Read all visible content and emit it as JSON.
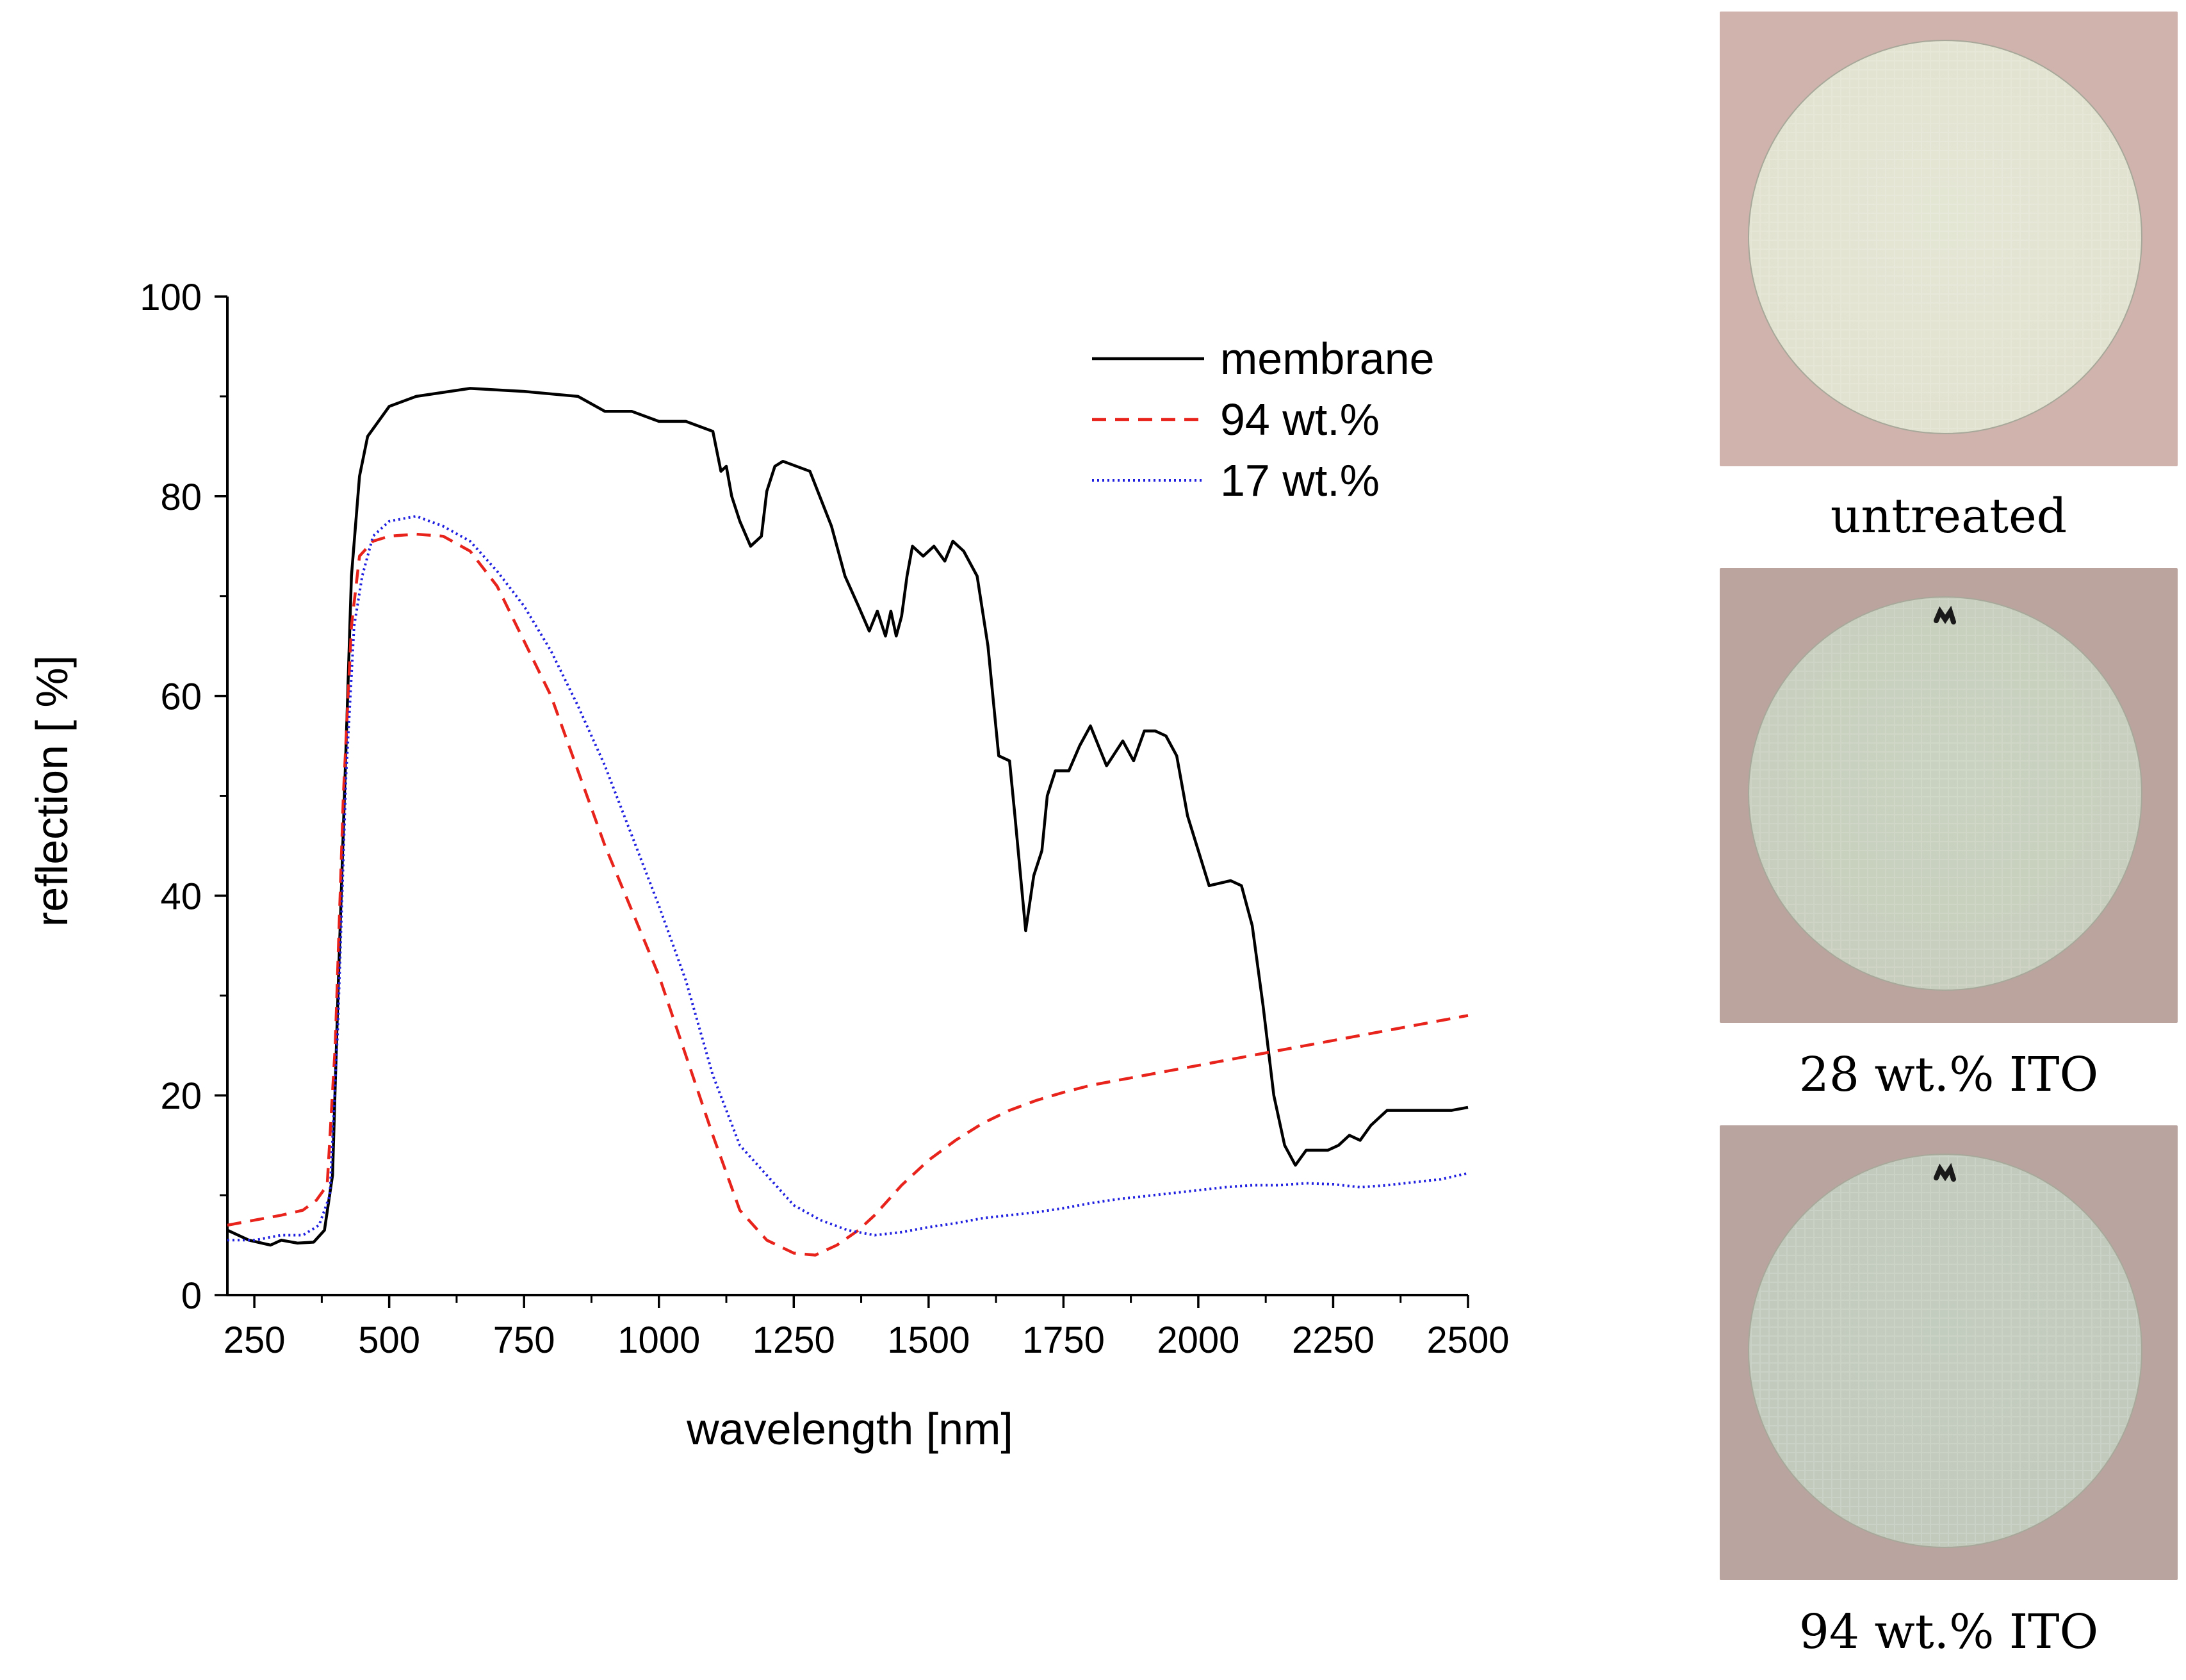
{
  "chart_data": {
    "type": "line",
    "xlabel": "wavelength [nm]",
    "ylabel": "reflection [ %]",
    "xlim": [
      200,
      2500
    ],
    "ylim": [
      0,
      100
    ],
    "xticks": [
      250,
      500,
      750,
      1000,
      1250,
      1500,
      1750,
      2000,
      2250,
      2500
    ],
    "yticks": [
      0,
      20,
      40,
      60,
      80,
      100
    ],
    "legend_position": "top-right",
    "grid": false,
    "series": [
      {
        "name": "membrane",
        "color": "#000000",
        "style": "solid",
        "x": [
          200,
          240,
          280,
          300,
          330,
          360,
          380,
          395,
          405,
          420,
          430,
          445,
          460,
          500,
          550,
          650,
          750,
          850,
          900,
          950,
          1000,
          1050,
          1100,
          1115,
          1125,
          1135,
          1150,
          1170,
          1190,
          1200,
          1215,
          1230,
          1280,
          1320,
          1345,
          1370,
          1390,
          1405,
          1420,
          1430,
          1440,
          1450,
          1460,
          1470,
          1490,
          1510,
          1530,
          1545,
          1565,
          1590,
          1610,
          1630,
          1650,
          1660,
          1680,
          1695,
          1710,
          1720,
          1735,
          1760,
          1780,
          1800,
          1830,
          1860,
          1880,
          1900,
          1920,
          1940,
          1960,
          1980,
          2020,
          2060,
          2080,
          2100,
          2120,
          2140,
          2160,
          2180,
          2200,
          2220,
          2240,
          2260,
          2280,
          2300,
          2320,
          2350,
          2390,
          2420,
          2450,
          2470,
          2500
        ],
        "values": [
          6.5,
          5.5,
          5.0,
          5.5,
          5.2,
          5.3,
          6.5,
          12,
          30,
          55,
          72,
          82,
          86,
          89,
          90,
          90.8,
          90.5,
          90.0,
          88.5,
          88.5,
          87.5,
          87.5,
          86.5,
          82.5,
          83.0,
          80.0,
          77.5,
          75.0,
          76.0,
          80.5,
          83.0,
          83.5,
          82.5,
          77.0,
          72.0,
          69.0,
          66.5,
          68.5,
          66.0,
          68.5,
          66.0,
          68.0,
          72.0,
          75.0,
          74.0,
          75.0,
          73.5,
          75.5,
          74.5,
          72.0,
          65.0,
          54.0,
          53.5,
          48.0,
          36.5,
          42.0,
          44.5,
          50.0,
          52.5,
          52.5,
          55.0,
          57.0,
          53.0,
          55.5,
          53.5,
          56.5,
          56.5,
          56.0,
          54.0,
          48.0,
          41.0,
          41.5,
          41.0,
          37.0,
          29.0,
          20.0,
          15.0,
          13.0,
          14.5,
          14.5,
          14.5,
          15.0,
          16.0,
          15.5,
          17.0,
          18.5,
          18.5,
          18.5,
          18.5,
          18.5,
          18.8
        ]
      },
      {
        "name": "94 wt.%",
        "color": "#e8231c",
        "style": "dashed",
        "x": [
          200,
          250,
          300,
          340,
          365,
          385,
          400,
          415,
          430,
          445,
          470,
          500,
          550,
          600,
          650,
          700,
          800,
          900,
          1000,
          1050,
          1100,
          1150,
          1200,
          1250,
          1290,
          1330,
          1370,
          1400,
          1450,
          1500,
          1550,
          1600,
          1650,
          1700,
          1750,
          1800,
          1850,
          1900,
          1950,
          2000,
          2100,
          2200,
          2300,
          2400,
          2500
        ],
        "values": [
          7.0,
          7.5,
          8.0,
          8.5,
          9.5,
          11,
          25,
          50,
          67,
          74,
          75.5,
          76.0,
          76.2,
          76.0,
          74.5,
          71.0,
          60.0,
          45.0,
          32.0,
          24.0,
          16.0,
          8.5,
          5.5,
          4.2,
          4.0,
          5.0,
          6.5,
          8.0,
          11.0,
          13.5,
          15.5,
          17.2,
          18.5,
          19.5,
          20.3,
          21.0,
          21.5,
          22.0,
          22.5,
          23.0,
          24.0,
          25.0,
          26.0,
          27.0,
          28.0
        ]
      },
      {
        "name": "17 wt.%",
        "color": "#1f1fe0",
        "style": "dotted",
        "x": [
          200,
          250,
          300,
          340,
          370,
          390,
          405,
          420,
          435,
          450,
          470,
          500,
          550,
          600,
          650,
          700,
          750,
          800,
          850,
          900,
          950,
          1000,
          1050,
          1100,
          1150,
          1200,
          1250,
          1300,
          1350,
          1400,
          1450,
          1500,
          1550,
          1600,
          1650,
          1700,
          1750,
          1800,
          1850,
          1900,
          1950,
          2000,
          2050,
          2100,
          2150,
          2200,
          2250,
          2300,
          2350,
          2400,
          2450,
          2500
        ],
        "values": [
          5.5,
          5.5,
          6.0,
          6.0,
          7.0,
          10,
          27,
          52,
          67,
          72,
          76,
          77.5,
          78.0,
          77.0,
          75.5,
          72.5,
          69.0,
          64.5,
          59.0,
          53.0,
          46.0,
          39.0,
          31.5,
          22.0,
          15.0,
          12.0,
          9.0,
          7.5,
          6.5,
          6.0,
          6.3,
          6.8,
          7.2,
          7.7,
          8.0,
          8.3,
          8.7,
          9.2,
          9.6,
          9.9,
          10.2,
          10.5,
          10.8,
          11.0,
          11.0,
          11.2,
          11.1,
          10.8,
          11.0,
          11.3,
          11.6,
          12.2
        ]
      }
    ]
  },
  "photos": [
    {
      "caption": "untreated",
      "background": "#cfb3ac",
      "disk": "#e4e6d4",
      "has_mark": false
    },
    {
      "caption": "28 wt.% ITO",
      "background": "#bba49e",
      "disk": "#c9d2c0",
      "has_mark": true
    },
    {
      "caption": "94 wt.% ITO",
      "background": "#baa4a0",
      "disk": "#c3cdbf",
      "has_mark": true
    }
  ]
}
